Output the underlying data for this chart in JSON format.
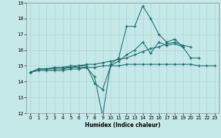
{
  "xlabel": "Humidex (Indice chaleur)",
  "xlim": [
    -0.5,
    23.5
  ],
  "ylim": [
    12,
    19
  ],
  "yticks": [
    12,
    13,
    14,
    15,
    16,
    17,
    18,
    19
  ],
  "xticks": [
    0,
    1,
    2,
    3,
    4,
    5,
    6,
    7,
    8,
    9,
    10,
    11,
    12,
    13,
    14,
    15,
    16,
    17,
    18,
    19,
    20,
    21,
    22,
    23
  ],
  "bg_color": "#c5e8e8",
  "grid_color": "#a8d5d5",
  "line_color": "#1a6b6b",
  "series": [
    {
      "x": [
        0,
        1,
        2,
        3,
        4,
        5,
        6,
        7,
        8,
        9,
        10,
        11,
        12,
        13,
        14,
        15,
        16,
        17,
        18,
        19
      ],
      "y": [
        14.6,
        14.8,
        14.8,
        14.8,
        14.8,
        14.9,
        14.9,
        14.9,
        14.3,
        11.8,
        15.1,
        15.5,
        17.5,
        17.5,
        18.8,
        18.0,
        17.0,
        16.5,
        16.7,
        16.2
      ]
    },
    {
      "x": [
        0,
        1,
        2,
        3,
        4,
        5,
        6,
        7,
        8,
        9,
        10,
        11,
        12,
        13,
        14,
        15,
        16,
        17,
        18,
        19,
        20,
        21
      ],
      "y": [
        14.6,
        14.8,
        14.8,
        14.9,
        14.9,
        14.9,
        15.0,
        15.0,
        13.9,
        13.5,
        15.0,
        15.3,
        15.7,
        16.0,
        16.5,
        15.8,
        16.5,
        16.3,
        16.4,
        16.2,
        15.5,
        15.5
      ]
    },
    {
      "x": [
        0,
        1,
        2,
        3,
        4,
        5,
        6,
        7,
        8,
        9,
        10,
        11,
        12,
        13,
        14,
        15,
        16,
        17,
        18,
        19,
        20
      ],
      "y": [
        14.6,
        14.8,
        14.8,
        14.9,
        14.9,
        15.0,
        15.0,
        15.1,
        15.1,
        15.2,
        15.3,
        15.4,
        15.5,
        15.7,
        15.9,
        16.1,
        16.2,
        16.4,
        16.5,
        16.3,
        16.2
      ]
    },
    {
      "x": [
        0,
        1,
        2,
        3,
        4,
        5,
        6,
        7,
        8,
        9,
        10,
        11,
        12,
        13,
        14,
        15,
        16,
        17,
        18,
        19,
        20,
        21,
        22,
        23
      ],
      "y": [
        14.6,
        14.7,
        14.7,
        14.7,
        14.7,
        14.8,
        14.8,
        14.9,
        14.9,
        15.0,
        15.0,
        15.0,
        15.1,
        15.1,
        15.1,
        15.1,
        15.1,
        15.1,
        15.1,
        15.1,
        15.1,
        15.0,
        15.0,
        15.0
      ]
    }
  ]
}
